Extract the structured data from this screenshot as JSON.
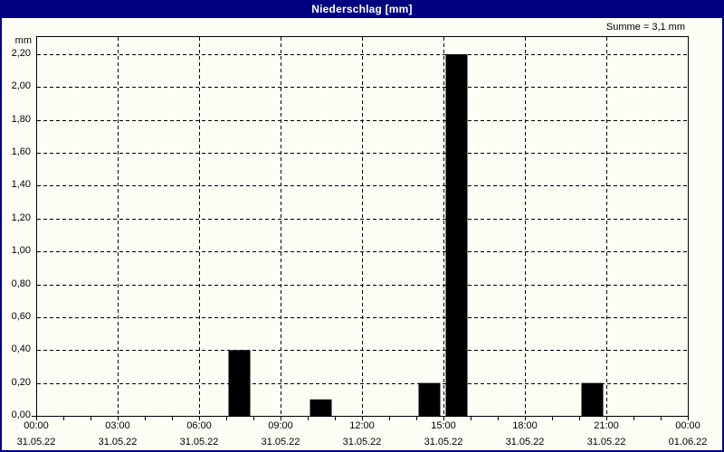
{
  "window": {
    "title": "Niederschlag [mm]"
  },
  "colors": {
    "titlebar_bg": "#000080",
    "titlebar_text": "#ffffff",
    "window_border": "#000080",
    "background": "#fdfdf6",
    "plot_border": "#000000",
    "grid": "#000000",
    "bar_fill": "#000000",
    "text": "#000000"
  },
  "chart_data": {
    "type": "bar",
    "title": "Niederschlag [mm]",
    "unit_label": "mm",
    "sum_annotation": "Summe = 3,1 mm",
    "grid": "dashed",
    "legend": "none",
    "ylim": [
      0,
      2.31
    ],
    "ytick_interval": 0.2,
    "yticks": [
      {
        "value": 0.0,
        "label": "0,00"
      },
      {
        "value": 0.2,
        "label": "0,20"
      },
      {
        "value": 0.4,
        "label": "0,40"
      },
      {
        "value": 0.6,
        "label": "0,60"
      },
      {
        "value": 0.8,
        "label": "0,80"
      },
      {
        "value": 1.0,
        "label": "1,00"
      },
      {
        "value": 1.2,
        "label": "1,20"
      },
      {
        "value": 1.4,
        "label": "1,40"
      },
      {
        "value": 1.6,
        "label": "1,60"
      },
      {
        "value": 1.8,
        "label": "1,80"
      },
      {
        "value": 2.0,
        "label": "2,00"
      },
      {
        "value": 2.2,
        "label": "2,20"
      }
    ],
    "x_range_hours": [
      0,
      24
    ],
    "x_minor_tick_interval_hours": 1,
    "xticks": [
      {
        "hour": 0,
        "time": "00:00",
        "date": "31.05.22"
      },
      {
        "hour": 3,
        "time": "03:00",
        "date": "31.05.22"
      },
      {
        "hour": 6,
        "time": "06:00",
        "date": "31.05.22"
      },
      {
        "hour": 9,
        "time": "09:00",
        "date": "31.05.22"
      },
      {
        "hour": 12,
        "time": "12:00",
        "date": "31.05.22"
      },
      {
        "hour": 15,
        "time": "15:00",
        "date": "31.05.22"
      },
      {
        "hour": 18,
        "time": "18:00",
        "date": "31.05.22"
      },
      {
        "hour": 21,
        "time": "21:00",
        "date": "31.05.22"
      },
      {
        "hour": 24,
        "time": "00:00",
        "date": "01.06.22"
      }
    ],
    "bars": [
      {
        "start_hour": 7,
        "end_hour": 8,
        "value": 0.4
      },
      {
        "start_hour": 10,
        "end_hour": 11,
        "value": 0.1
      },
      {
        "start_hour": 14,
        "end_hour": 15,
        "value": 0.2
      },
      {
        "start_hour": 15,
        "end_hour": 16,
        "value": 2.2
      },
      {
        "start_hour": 20,
        "end_hour": 21,
        "value": 0.2
      }
    ]
  }
}
